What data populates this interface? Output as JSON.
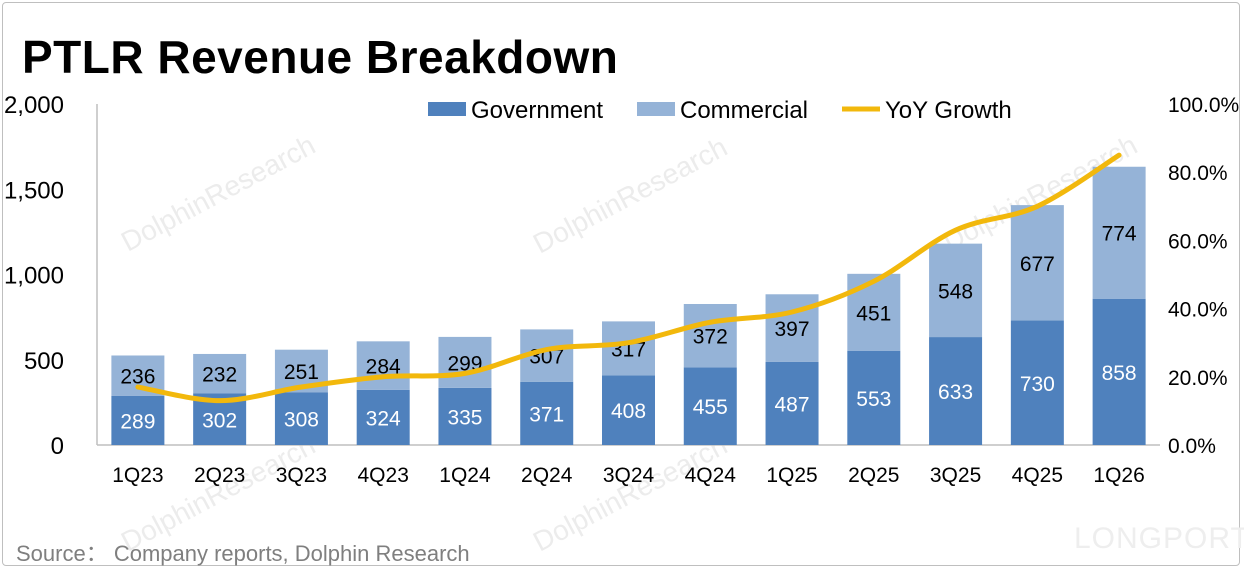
{
  "title": "PTLR Revenue Breakdown",
  "source": "Source：  Company reports, Dolphin Research",
  "watermark": "DolphinResearch",
  "brand": "LONGPORT",
  "colors": {
    "government": "#4f81bd",
    "commercial": "#95b3d7",
    "growth": "#f2b80c",
    "axis": "#bfbfbf"
  },
  "chart_data": {
    "type": "bar",
    "stacked": true,
    "categories": [
      "1Q23",
      "2Q23",
      "3Q23",
      "4Q23",
      "1Q24",
      "2Q24",
      "3Q24",
      "4Q24",
      "1Q25",
      "2Q25",
      "3Q25",
      "4Q25",
      "1Q26"
    ],
    "series": [
      {
        "name": "Government",
        "values": [
          289,
          302,
          308,
          324,
          335,
          371,
          408,
          455,
          487,
          553,
          633,
          730,
          858
        ]
      },
      {
        "name": "Commercial",
        "values": [
          236,
          232,
          251,
          284,
          299,
          307,
          317,
          372,
          397,
          451,
          548,
          677,
          774
        ]
      }
    ],
    "line_series": {
      "name": "YoY Growth",
      "axis": "right",
      "values": [
        17,
        13,
        17,
        20,
        21,
        28,
        30,
        36,
        39,
        48,
        63,
        70,
        85
      ]
    },
    "ylim": [
      0,
      2000
    ],
    "yticks": [
      "0",
      "500",
      "1,000",
      "1,500",
      "2,000"
    ],
    "y2lim": [
      0,
      100
    ],
    "y2ticks": [
      "0.0%",
      "20.0%",
      "40.0%",
      "60.0%",
      "80.0%",
      "100.0%"
    ],
    "legend": {
      "position": "top",
      "items": [
        "Government",
        "Commercial",
        "YoY Growth"
      ]
    },
    "grid": false
  }
}
